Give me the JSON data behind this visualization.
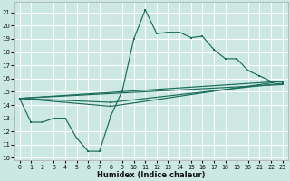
{
  "xlabel": "Humidex (Indice chaleur)",
  "bg_color": "#cce8e2",
  "grid_color": "#c0dcd6",
  "line_color": "#1a6b5a",
  "xlim": [
    -0.5,
    23.5
  ],
  "ylim": [
    9.8,
    21.8
  ],
  "yticks": [
    10,
    11,
    12,
    13,
    14,
    15,
    16,
    17,
    18,
    19,
    20,
    21
  ],
  "xticks": [
    0,
    1,
    2,
    3,
    4,
    5,
    6,
    7,
    8,
    9,
    10,
    11,
    12,
    13,
    14,
    15,
    16,
    17,
    18,
    19,
    20,
    21,
    22,
    23
  ],
  "main_x": [
    0,
    1,
    2,
    3,
    4,
    5,
    6,
    7,
    8,
    9,
    10,
    11,
    12,
    13,
    14,
    15,
    16,
    17,
    18,
    19,
    20,
    21,
    22,
    23
  ],
  "main_y": [
    14.5,
    12.7,
    12.7,
    13.0,
    13.0,
    11.5,
    10.5,
    10.5,
    13.2,
    15.1,
    19.0,
    21.2,
    19.4,
    19.5,
    19.5,
    19.1,
    19.2,
    18.2,
    17.5,
    17.5,
    16.6,
    16.2,
    15.8,
    15.8
  ],
  "ref_lines": [
    {
      "x": [
        0,
        23
      ],
      "y": [
        14.5,
        15.8
      ]
    },
    {
      "x": [
        0,
        23
      ],
      "y": [
        14.5,
        15.55
      ]
    },
    {
      "x": [
        0,
        8,
        23
      ],
      "y": [
        14.5,
        13.9,
        15.8
      ]
    },
    {
      "x": [
        0,
        8,
        23
      ],
      "y": [
        14.5,
        14.2,
        15.65
      ]
    }
  ]
}
